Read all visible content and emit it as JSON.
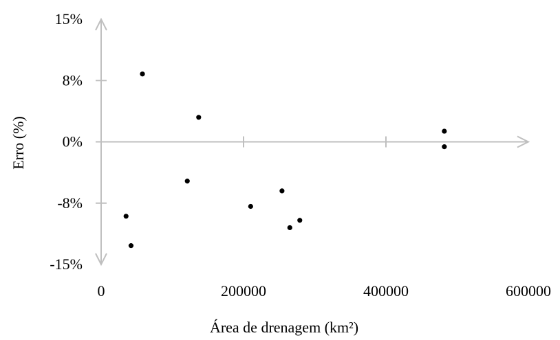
{
  "chart_data": {
    "type": "scatter",
    "xlabel": "Área de drenagem (km²)",
    "ylabel": "Erro (%)",
    "xlim": [
      0,
      600000
    ],
    "ylim": [
      -15,
      15
    ],
    "x_ticks": [
      {
        "value": 0,
        "label": "0"
      },
      {
        "value": 200000,
        "label": "200000"
      },
      {
        "value": 400000,
        "label": "400000"
      },
      {
        "value": 600000,
        "label": "600000"
      }
    ],
    "y_ticks": [
      {
        "value": 15,
        "label": "15%"
      },
      {
        "value": 7.5,
        "label": "8%"
      },
      {
        "value": 0,
        "label": "0%"
      },
      {
        "value": -7.5,
        "label": "-8%"
      },
      {
        "value": -15,
        "label": "-15%"
      }
    ],
    "grid": false,
    "colors": {
      "axis": "#bfbfbf",
      "point": "#000000"
    },
    "series": [
      {
        "points": [
          {
            "x": 35000,
            "y": -9.1
          },
          {
            "x": 42000,
            "y": -12.7
          },
          {
            "x": 58000,
            "y": 8.3
          },
          {
            "x": 121000,
            "y": -4.8
          },
          {
            "x": 137000,
            "y": 3.0
          },
          {
            "x": 210000,
            "y": -7.9
          },
          {
            "x": 254000,
            "y": -6.0
          },
          {
            "x": 265000,
            "y": -10.5
          },
          {
            "x": 279000,
            "y": -9.6
          },
          {
            "x": 482000,
            "y": 1.3
          },
          {
            "x": 482000,
            "y": -0.6
          }
        ]
      }
    ]
  }
}
